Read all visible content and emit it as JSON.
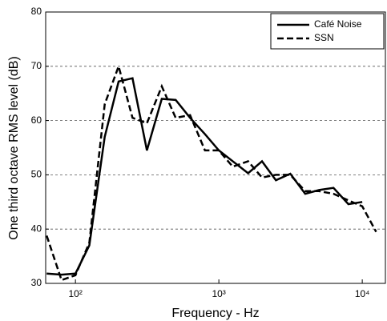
{
  "chart_data": {
    "type": "line",
    "x_label": "Frequency - Hz",
    "y_label": "One third octave RMS level (dB)",
    "x": [
      63,
      80,
      100,
      125,
      160,
      200,
      250,
      315,
      400,
      500,
      630,
      800,
      1000,
      1250,
      1600,
      2000,
      2500,
      3150,
      4000,
      5000,
      6300,
      8000,
      10000,
      12500
    ],
    "series": [
      {
        "name": "Café Noise",
        "color": "#000000",
        "dash": "solid",
        "values": [
          31.8,
          31.6,
          31.8,
          37,
          57,
          67.2,
          67.8,
          54.5,
          64,
          63.8,
          60.5,
          57.5,
          54.5,
          52.5,
          50.3,
          52.5,
          49,
          50.2,
          46.5,
          47.2,
          47.6,
          44.6,
          45,
          null
        ]
      },
      {
        "name": "SSN",
        "color": "#000000",
        "dash": "dashed",
        "values": [
          38.8,
          30.6,
          31.5,
          37.5,
          63,
          70,
          60.5,
          59.5,
          66.3,
          60.5,
          61,
          54.5,
          54.5,
          51.5,
          52.5,
          49.5,
          50,
          50,
          47,
          47,
          46.5,
          45.3,
          44.2,
          39.5
        ]
      }
    ],
    "xlog": true,
    "xlim": [
      62,
      14500
    ],
    "xticks": [
      {
        "value": 100,
        "label": "10²"
      },
      {
        "value": 1000,
        "label": "10³"
      },
      {
        "value": 10000,
        "label": "10⁴"
      }
    ],
    "ylim": [
      30,
      80
    ],
    "yticks": [
      30,
      40,
      50,
      60,
      70,
      80
    ],
    "grid": "y-dashed",
    "legend": "upper right"
  }
}
